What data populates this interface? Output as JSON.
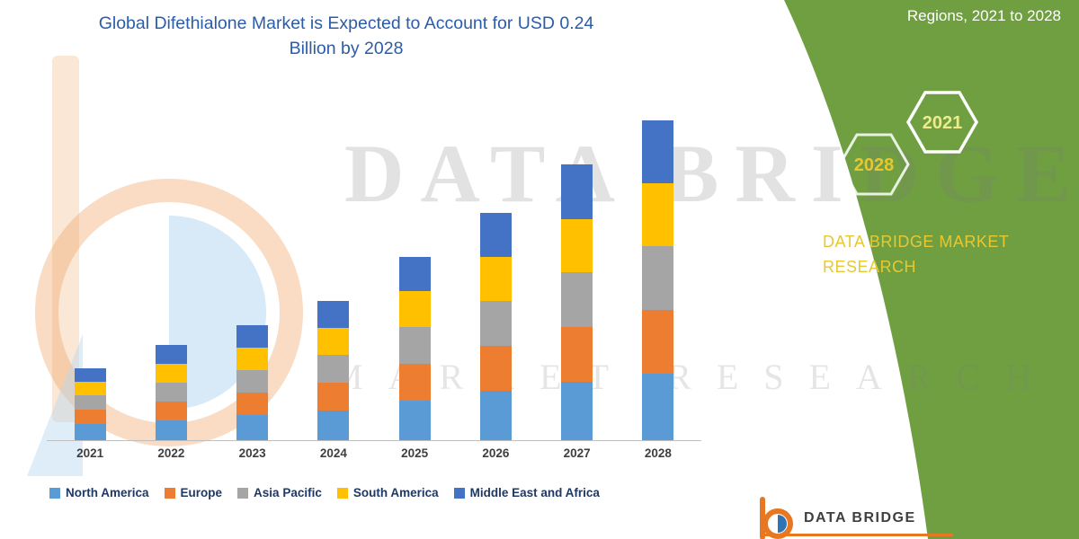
{
  "header": {
    "title_line1": "Global Difethialone Market is Expected to Account for USD 0.24",
    "title_line2": "Billion by 2028"
  },
  "watermark": {
    "line1": "DATA BRIDGE",
    "line2": "MARKET RESEARCH"
  },
  "panel": {
    "caption": "Regions, 2021 to 2028",
    "hexagons": [
      {
        "label": "2028"
      },
      {
        "label": "2021"
      }
    ],
    "brand_line1": "DATA BRIDGE MARKET",
    "brand_line2": "RESEARCH",
    "panel_color": "#6f9f41",
    "accent_yellow": "#e7c832"
  },
  "footer_logo": {
    "text": "DATA BRIDGE",
    "underline_color": "#e87722"
  },
  "chart_data": {
    "type": "bar",
    "stacked": true,
    "title": "Global Difethialone Market is Expected to Account for USD 0.24 Billion by 2028",
    "unit": "USD billion",
    "categories": [
      "2021",
      "2022",
      "2023",
      "2024",
      "2025",
      "2026",
      "2027",
      "2028"
    ],
    "series": [
      {
        "name": "North America",
        "color": "#5b9bd5",
        "values": [
          0.012,
          0.015,
          0.019,
          0.022,
          0.03,
          0.037,
          0.044,
          0.05
        ]
      },
      {
        "name": "Europe",
        "color": "#ed7d31",
        "values": [
          0.011,
          0.014,
          0.017,
          0.021,
          0.028,
          0.034,
          0.041,
          0.048
        ]
      },
      {
        "name": "Asia Pacific",
        "color": "#a5a5a5",
        "values": [
          0.011,
          0.014,
          0.017,
          0.021,
          0.028,
          0.034,
          0.041,
          0.048
        ]
      },
      {
        "name": "South America",
        "color": "#ffc000",
        "values": [
          0.01,
          0.014,
          0.017,
          0.02,
          0.027,
          0.033,
          0.04,
          0.047
        ]
      },
      {
        "name": "Middle East and Africa",
        "color": "#4472c4",
        "values": [
          0.01,
          0.014,
          0.017,
          0.02,
          0.026,
          0.033,
          0.041,
          0.047
        ]
      }
    ],
    "totals": [
      0.054,
      0.071,
      0.087,
      0.104,
      0.139,
      0.171,
      0.207,
      0.24
    ],
    "ylim": [
      0,
      0.25
    ],
    "grid": false,
    "legend_position": "bottom"
  }
}
